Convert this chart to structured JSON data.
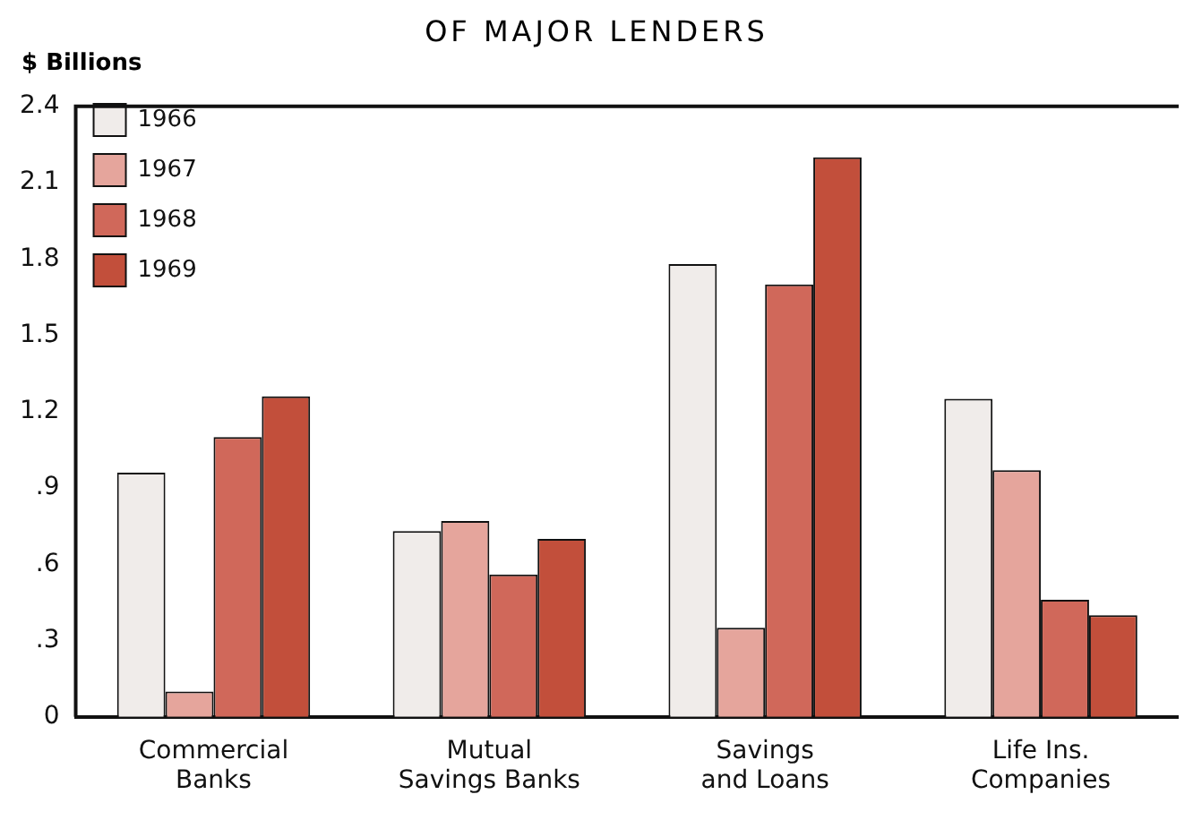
{
  "chart_data": {
    "type": "bar",
    "title": "OF MAJOR LENDERS",
    "ylabel": "$ Billions",
    "categories": [
      "Commercial\nBanks",
      "Mutual\nSavings Banks",
      "Savings\nand Loans",
      "Life Ins.\nCompanies"
    ],
    "series": [
      {
        "name": "1966",
        "color": "#f0ecea",
        "values": [
          0.96,
          0.73,
          1.78,
          1.25
        ]
      },
      {
        "name": "1967",
        "color": "#e5a59c",
        "values": [
          0.1,
          0.77,
          0.35,
          0.97
        ]
      },
      {
        "name": "1968",
        "color": "#d0685a",
        "values": [
          1.1,
          0.56,
          1.7,
          0.46
        ]
      },
      {
        "name": "1969",
        "color": "#c24f3b",
        "values": [
          1.26,
          0.7,
          2.2,
          0.4
        ]
      }
    ],
    "ylim": [
      0,
      2.4
    ],
    "yticks": [
      0,
      {
        "value": 0.3,
        "label": ".3"
      },
      {
        "value": 0.6,
        "label": ".6"
      },
      {
        "value": 0.9,
        "label": ".9"
      },
      1.2,
      1.5,
      1.8,
      2.1,
      2.4
    ],
    "grid": false,
    "legend": "top left"
  }
}
